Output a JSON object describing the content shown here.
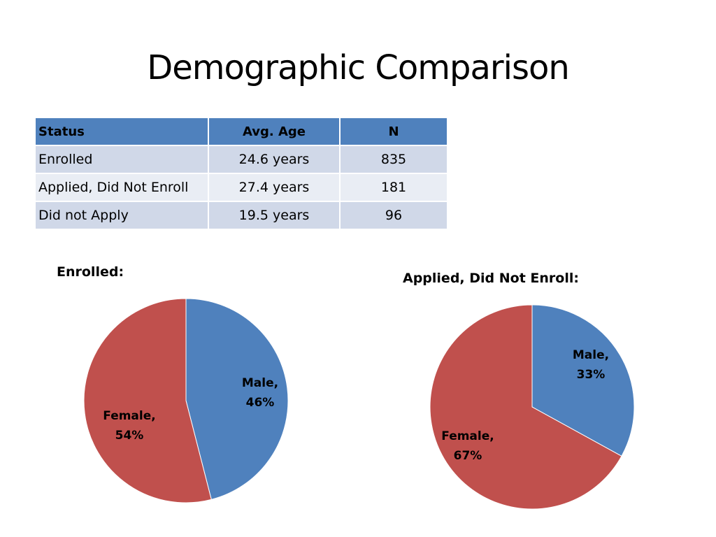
{
  "title": "Demographic Comparison",
  "table": {
    "headers": [
      "Status",
      "Avg. Age",
      "N"
    ],
    "rows": [
      [
        "Enrolled",
        "24.6 years",
        "835"
      ],
      [
        "Applied, Did Not Enroll",
        "27.4 years",
        "181"
      ],
      [
        "Did not Apply",
        "19.5 years",
        "96"
      ]
    ]
  },
  "colors": {
    "male": "#4f81bd",
    "female": "#c0504d",
    "table_header": "#4f81bd",
    "table_row_odd": "#d0d8e8",
    "table_row_even": "#e9edf4"
  },
  "chart_data": [
    {
      "type": "pie",
      "title": "Enrolled:",
      "categories": [
        "Male",
        "Female"
      ],
      "values": [
        46,
        54
      ],
      "labels": [
        {
          "name": "Male,",
          "value": "46%"
        },
        {
          "name": "Female,",
          "value": "54%"
        }
      ],
      "legend": "none"
    },
    {
      "type": "pie",
      "title": "Applied, Did Not Enroll:",
      "categories": [
        "Male",
        "Female"
      ],
      "values": [
        33,
        67
      ],
      "labels": [
        {
          "name": "Male,",
          "value": "33%"
        },
        {
          "name": "Female,",
          "value": "67%"
        }
      ],
      "legend": "none"
    }
  ]
}
